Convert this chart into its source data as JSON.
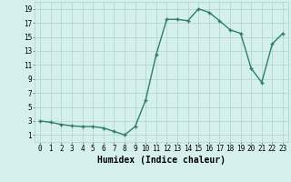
{
  "x": [
    0,
    1,
    2,
    3,
    4,
    5,
    6,
    7,
    8,
    9,
    10,
    11,
    12,
    13,
    14,
    15,
    16,
    17,
    18,
    19,
    20,
    21,
    22,
    23
  ],
  "y": [
    3,
    2.8,
    2.5,
    2.3,
    2.2,
    2.2,
    2.0,
    1.5,
    1.0,
    2.2,
    6.0,
    12.5,
    17.5,
    17.5,
    17.3,
    19.0,
    18.5,
    17.3,
    16.0,
    15.5,
    10.5,
    8.5,
    14.0,
    15.5
  ],
  "line_color": "#2d7d6e",
  "marker": "+",
  "markersize": 3,
  "markeredgewidth": 1.0,
  "bg_color": "#d5f0ec",
  "grid_color": "#aad4cc",
  "xlabel": "Humidex (Indice chaleur)",
  "xlabel_fontsize": 7,
  "xlim": [
    -0.5,
    23.5
  ],
  "ylim": [
    0,
    20
  ],
  "yticks": [
    1,
    3,
    5,
    7,
    9,
    11,
    13,
    15,
    17,
    19
  ],
  "xticks": [
    0,
    1,
    2,
    3,
    4,
    5,
    6,
    7,
    8,
    9,
    10,
    11,
    12,
    13,
    14,
    15,
    16,
    17,
    18,
    19,
    20,
    21,
    22,
    23
  ],
  "tick_fontsize": 5.5,
  "linewidth": 1.0
}
